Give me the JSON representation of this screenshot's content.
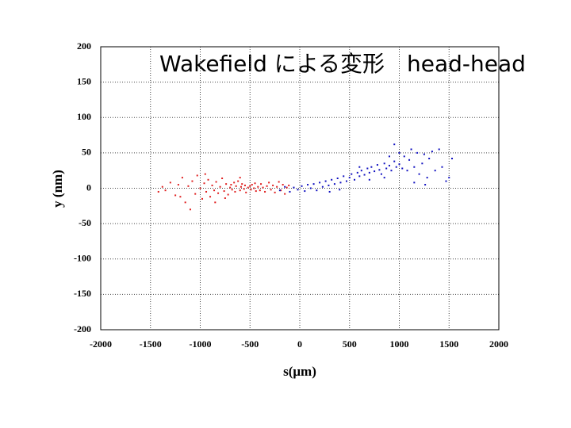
{
  "chart_data": {
    "type": "scatter",
    "title": "Wakefield による変形　head-head",
    "xlabel": "s(μm)",
    "ylabel": "y (nm)",
    "xlim": [
      -2000,
      2000
    ],
    "xticks": [
      -2000,
      -1500,
      -1000,
      -500,
      0,
      500,
      1000,
      1500,
      2000
    ],
    "ylim": [
      -200,
      200
    ],
    "yticks": [
      -200,
      -150,
      -100,
      -50,
      0,
      50,
      100,
      150,
      200
    ],
    "grid": true,
    "series": [
      {
        "color": "#e02020",
        "x": [
          -1420,
          -1380,
          -1350,
          -1300,
          -1250,
          -1220,
          -1180,
          -1150,
          -1120,
          -1100,
          -1080,
          -1050,
          -1030,
          -1000,
          -980,
          -960,
          -940,
          -920,
          -900,
          -880,
          -860,
          -840,
          -820,
          -800,
          -780,
          -760,
          -740,
          -720,
          -700,
          -690,
          -680,
          -660,
          -650,
          -640,
          -620,
          -600,
          -590,
          -580,
          -560,
          -550,
          -540,
          -520,
          -500,
          -490,
          -480,
          -460,
          -450,
          -440,
          -420,
          -400,
          -390,
          -370,
          -350,
          -330,
          -310,
          -290,
          -270,
          -250,
          -230,
          -210,
          -190,
          -170,
          -150,
          -130,
          -110,
          -850,
          -950,
          -1200,
          -750,
          -600
        ],
        "values": [
          -5,
          2,
          -3,
          8,
          -10,
          5,
          15,
          -20,
          3,
          -30,
          10,
          -8,
          18,
          0,
          -15,
          7,
          -5,
          12,
          -12,
          4,
          -3,
          9,
          -7,
          2,
          14,
          -4,
          6,
          -9,
          1,
          5,
          -2,
          8,
          -5,
          3,
          10,
          -3,
          2,
          6,
          -1,
          4,
          -6,
          1,
          3,
          -2,
          5,
          0,
          7,
          -4,
          2,
          -3,
          6,
          1,
          -5,
          3,
          8,
          -2,
          4,
          -6,
          2,
          9,
          -3,
          5,
          -8,
          1,
          4,
          -20,
          20,
          -12,
          -14,
          15
        ]
      },
      {
        "color": "#1010c0",
        "x": [
          -200,
          -150,
          -100,
          -60,
          -20,
          20,
          50,
          80,
          110,
          140,
          170,
          200,
          230,
          260,
          290,
          320,
          350,
          380,
          410,
          440,
          470,
          500,
          520,
          550,
          580,
          600,
          620,
          650,
          680,
          700,
          720,
          750,
          780,
          800,
          820,
          850,
          870,
          900,
          920,
          950,
          970,
          1000,
          1030,
          1050,
          1080,
          1100,
          1120,
          1150,
          1180,
          1200,
          1230,
          1250,
          1280,
          1300,
          1330,
          1360,
          1400,
          1430,
          1470,
          1500,
          1530,
          950,
          900,
          1000,
          850,
          400,
          300,
          600,
          700,
          1150,
          1260
        ],
        "values": [
          -3,
          2,
          -5,
          1,
          -2,
          3,
          -4,
          5,
          0,
          6,
          -3,
          8,
          2,
          10,
          4,
          12,
          6,
          14,
          8,
          17,
          10,
          15,
          20,
          12,
          22,
          17,
          25,
          19,
          28,
          22,
          30,
          24,
          33,
          26,
          20,
          35,
          28,
          32,
          25,
          38,
          30,
          34,
          28,
          45,
          25,
          40,
          55,
          30,
          50,
          20,
          35,
          48,
          15,
          42,
          52,
          25,
          55,
          30,
          10,
          15,
          42,
          62,
          45,
          50,
          15,
          -2,
          -5,
          30,
          12,
          8,
          5
        ]
      }
    ]
  }
}
